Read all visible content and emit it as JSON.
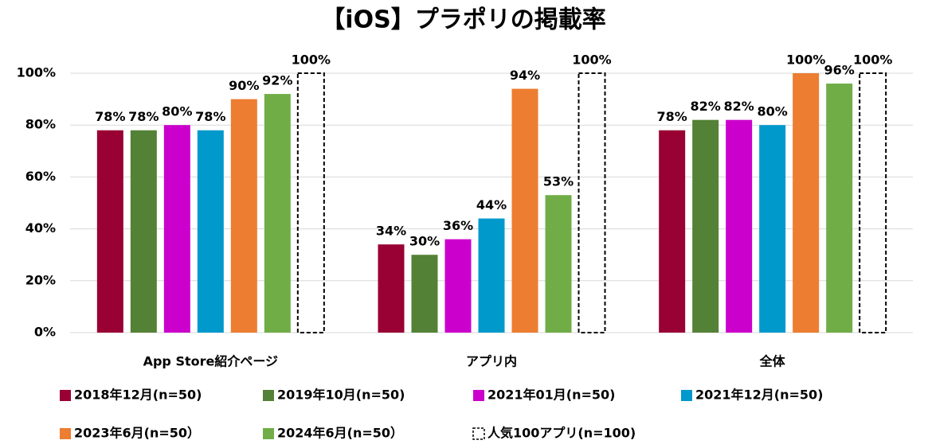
{
  "chart_data": {
    "type": "bar",
    "title": "【iOS】プラポリの掲載率",
    "categories": [
      "App Store紹介ページ",
      "アプリ内",
      "全体"
    ],
    "series": [
      {
        "name": "2018年12月(n=50)",
        "color": "#990033",
        "values": [
          78,
          34,
          78
        ],
        "value_labels": [
          "78%",
          "34%",
          "78%"
        ]
      },
      {
        "name": "2019年10月(n=50)",
        "color": "#538135",
        "values": [
          78,
          30,
          82
        ],
        "value_labels": [
          "78%",
          "30%",
          "82%"
        ]
      },
      {
        "name": "2021年01月(n=50)",
        "color": "#cc00cc",
        "values": [
          80,
          36,
          82
        ],
        "value_labels": [
          "80%",
          "36%",
          "82%"
        ]
      },
      {
        "name": "2021年12月(n=50)",
        "color": "#0099cc",
        "values": [
          78,
          44,
          80
        ],
        "value_labels": [
          "78%",
          "44%",
          "80%"
        ]
      },
      {
        "name": "2023年6月(n=50）",
        "color": "#ed7d31",
        "values": [
          90,
          94,
          100
        ],
        "value_labels": [
          "90%",
          "94%",
          "100%"
        ]
      },
      {
        "name": "2024年6月(n=50）",
        "color": "#70ad47",
        "values": [
          92,
          53,
          96
        ],
        "value_labels": [
          "92%",
          "53%",
          "96%"
        ]
      },
      {
        "name": "人気100アプリ(n=100)",
        "color": "#000000",
        "style": "dashed",
        "values": [
          100,
          100,
          100
        ],
        "value_labels": [
          "100%",
          "100%",
          "100%"
        ]
      }
    ],
    "ylim": [
      0,
      100
    ],
    "yticks": [
      {
        "value": 0,
        "label": "0%"
      },
      {
        "value": 20,
        "label": "20%"
      },
      {
        "value": 40,
        "label": "40%"
      },
      {
        "value": 60,
        "label": "60%"
      },
      {
        "value": 80,
        "label": "80%"
      },
      {
        "value": 100,
        "label": "100%"
      }
    ],
    "grid": true
  }
}
